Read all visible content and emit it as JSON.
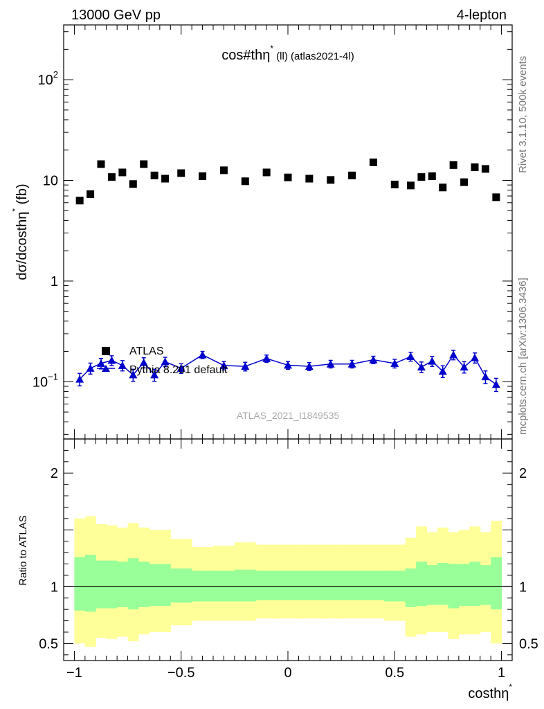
{
  "header": {
    "left_label": "13000 GeV pp",
    "right_label": "4-lepton"
  },
  "side_labels": {
    "rivet": "Rivet 3.1.10,  500k events",
    "mcplots": "mcplots.cern.ch [arXiv:1306.3436]"
  },
  "chart_data": [
    {
      "type": "scatter",
      "title": "cos#thη* (ll) (atlas2021-4l)",
      "title_main": "cos#thη",
      "title_sup": "*",
      "title_rest": " (ll) (atlas2021-4l)",
      "ylabel": "dσ/dcosthη* (fb)",
      "ylabel_main": "dσ/dcosthη",
      "ylabel_sup": "*",
      "ylabel_unit": " (fb)",
      "yscale": "log",
      "ylim": [
        0.027,
        350
      ],
      "xlim": [
        -1.05,
        1.05
      ],
      "ytick_labels": [
        {
          "value": 100,
          "base": "10",
          "exp": "2"
        },
        {
          "value": 10,
          "base": "10",
          "exp": ""
        },
        {
          "value": 1,
          "base": "1",
          "exp": ""
        },
        {
          "value": 0.1,
          "base": "10",
          "exp": "−1"
        }
      ],
      "watermark": "ATLAS_2021_I1849535",
      "legend": {
        "placement": "lower-left",
        "entries": [
          {
            "label": "ATLAS",
            "marker": "square",
            "color": "#000000"
          },
          {
            "label": "Pythia 8.201 default",
            "marker": "triangle",
            "color": "#0000cc"
          }
        ]
      },
      "series": [
        {
          "name": "ATLAS",
          "marker": "square",
          "color": "#000000",
          "x": [
            -0.975,
            -0.925,
            -0.875,
            -0.825,
            -0.775,
            -0.725,
            -0.675,
            -0.625,
            -0.575,
            -0.5,
            -0.4,
            -0.3,
            -0.2,
            -0.1,
            0.0,
            0.1,
            0.2,
            0.3,
            0.4,
            0.5,
            0.575,
            0.625,
            0.675,
            0.725,
            0.775,
            0.825,
            0.875,
            0.925,
            0.975
          ],
          "y": [
            6.3,
            7.3,
            14.5,
            10.8,
            12.0,
            9.2,
            14.5,
            11.2,
            10.4,
            11.8,
            11.0,
            12.6,
            9.8,
            12.0,
            10.7,
            10.4,
            10.1,
            11.2,
            15.1,
            9.1,
            8.9,
            10.8,
            11.0,
            8.5,
            14.2,
            9.6,
            13.5,
            13.0,
            6.8
          ]
        },
        {
          "name": "Pythia 8.201 default",
          "marker": "triangle",
          "color": "#0000cc",
          "x": [
            -0.975,
            -0.925,
            -0.875,
            -0.825,
            -0.775,
            -0.725,
            -0.675,
            -0.625,
            -0.575,
            -0.5,
            -0.4,
            -0.3,
            -0.2,
            -0.1,
            0.0,
            0.1,
            0.2,
            0.3,
            0.4,
            0.5,
            0.575,
            0.625,
            0.675,
            0.725,
            0.775,
            0.825,
            0.875,
            0.925,
            0.975
          ],
          "y": [
            0.106,
            0.136,
            0.152,
            0.163,
            0.145,
            0.117,
            0.155,
            0.117,
            0.158,
            0.136,
            0.185,
            0.145,
            0.142,
            0.17,
            0.146,
            0.142,
            0.15,
            0.15,
            0.165,
            0.152,
            0.178,
            0.14,
            0.16,
            0.127,
            0.185,
            0.14,
            0.173,
            0.112,
            0.094
          ],
          "yerr": [
            0.015,
            0.017,
            0.018,
            0.018,
            0.017,
            0.016,
            0.018,
            0.016,
            0.017,
            0.015,
            0.015,
            0.014,
            0.014,
            0.014,
            0.013,
            0.013,
            0.013,
            0.013,
            0.014,
            0.015,
            0.018,
            0.017,
            0.018,
            0.017,
            0.02,
            0.018,
            0.02,
            0.016,
            0.014
          ]
        }
      ]
    },
    {
      "type": "area",
      "ylabel": "Ratio to ATLAS",
      "ylim": [
        0.35,
        2.3
      ],
      "xlim": [
        -1.05,
        1.05
      ],
      "xlabel": "costhη*",
      "xlabel_main": "costhη",
      "xlabel_sup": "*",
      "xtick_labels": [
        {
          "value": -1,
          "label": "−1"
        },
        {
          "value": -0.5,
          "label": "−0.5"
        },
        {
          "value": 0,
          "label": "0"
        },
        {
          "value": 0.5,
          "label": "0.5"
        },
        {
          "value": 1,
          "label": "1"
        }
      ],
      "ytick_labels": [
        {
          "value": 2,
          "label": "2"
        },
        {
          "value": 1,
          "label": "1"
        },
        {
          "value": 0.5,
          "label": "0.5"
        }
      ],
      "reference_line": 1,
      "bin_edges": [
        -1.0,
        -0.95,
        -0.9,
        -0.85,
        -0.8,
        -0.75,
        -0.7,
        -0.65,
        -0.6,
        -0.55,
        -0.45,
        -0.35,
        -0.25,
        -0.15,
        -0.05,
        0.05,
        0.15,
        0.25,
        0.35,
        0.45,
        0.55,
        0.6,
        0.65,
        0.7,
        0.75,
        0.8,
        0.85,
        0.9,
        0.95,
        1.0
      ],
      "bands": [
        {
          "name": "total",
          "color": "#ffff99",
          "lo": [
            0.5,
            0.47,
            0.55,
            0.54,
            0.56,
            0.52,
            0.58,
            0.6,
            0.6,
            0.66,
            0.7,
            0.7,
            0.7,
            0.72,
            0.72,
            0.72,
            0.72,
            0.72,
            0.72,
            0.7,
            0.56,
            0.58,
            0.6,
            0.6,
            0.54,
            0.58,
            0.58,
            0.6,
            0.5
          ],
          "hi": [
            1.6,
            1.62,
            1.55,
            1.54,
            1.52,
            1.56,
            1.52,
            1.5,
            1.5,
            1.42,
            1.35,
            1.36,
            1.39,
            1.37,
            1.37,
            1.37,
            1.37,
            1.37,
            1.37,
            1.37,
            1.43,
            1.53,
            1.48,
            1.52,
            1.48,
            1.5,
            1.53,
            1.48,
            1.58
          ]
        },
        {
          "name": "statistical",
          "color": "#99ff99",
          "lo": [
            0.79,
            0.78,
            0.81,
            0.81,
            0.82,
            0.8,
            0.82,
            0.83,
            0.83,
            0.86,
            0.87,
            0.87,
            0.87,
            0.88,
            0.88,
            0.88,
            0.88,
            0.88,
            0.88,
            0.87,
            0.82,
            0.83,
            0.84,
            0.84,
            0.81,
            0.83,
            0.83,
            0.84,
            0.8
          ],
          "hi": [
            1.26,
            1.28,
            1.23,
            1.23,
            1.22,
            1.25,
            1.22,
            1.2,
            1.2,
            1.16,
            1.14,
            1.14,
            1.15,
            1.14,
            1.14,
            1.14,
            1.14,
            1.14,
            1.14,
            1.14,
            1.16,
            1.22,
            1.19,
            1.21,
            1.2,
            1.2,
            1.22,
            1.19,
            1.26
          ]
        }
      ]
    }
  ]
}
